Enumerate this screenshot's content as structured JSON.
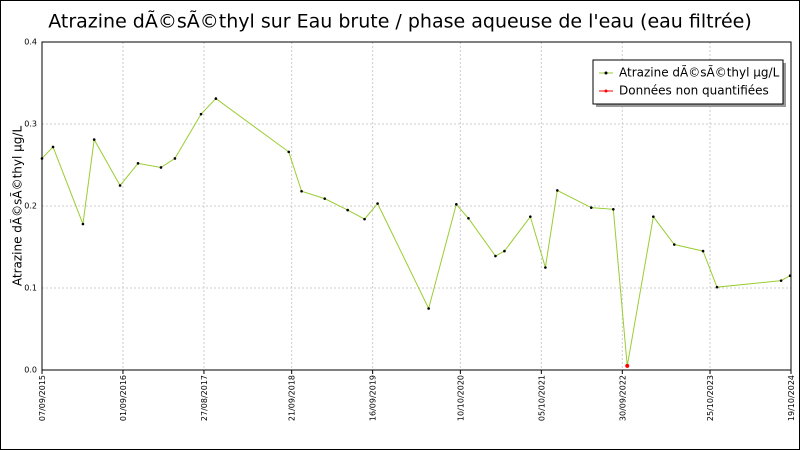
{
  "chart_data": {
    "type": "line",
    "title": "Atrazine dÃ©sÃ©thyl sur Eau brute / phase aqueuse de l'eau (eau filtrée)",
    "y_label": "Atrazine dÃ©sÃ©thyl µg/L",
    "xlim": [
      "07/09/2015",
      "19/10/2024"
    ],
    "xticks": [
      "07/09/2015",
      "01/09/2016",
      "27/08/2017",
      "21/09/2018",
      "16/09/2019",
      "10/10/2020",
      "05/10/2021",
      "30/09/2022",
      "25/10/2023",
      "19/10/2024"
    ],
    "ylim": [
      0,
      0.4
    ],
    "yticks": [
      {
        "value": 0,
        "label": "0.0"
      },
      0.1,
      0.2,
      0.3,
      0.4
    ],
    "grid": true,
    "legend": "upper right",
    "series": [
      {
        "name": "Atrazine dÃ©sÃ©thyl µg/L",
        "color": "#9acd32",
        "marker_color": "#000000",
        "x": [
          "07/09/2015",
          "26/10/2015",
          "07/03/2016",
          "26/04/2016",
          "19/08/2016",
          "07/11/2016",
          "17/02/2017",
          "20/04/2017",
          "14/08/2017",
          "19/10/2017",
          "08/09/2018",
          "04/11/2018",
          "15/02/2019",
          "28/05/2019",
          "11/08/2019",
          "08/10/2019",
          "22/05/2020",
          "22/09/2020",
          "15/11/2020",
          "15/03/2021",
          "24/04/2021",
          "17/08/2021",
          "23/10/2021",
          "15/12/2021",
          "15/05/2022",
          "21/08/2022",
          "22/10/2022",
          "15/02/2023",
          "19/05/2023",
          "24/09/2023",
          "25/11/2023",
          "05/09/2024",
          "15/10/2024"
        ],
        "values": [
          0.258,
          0.272,
          0.178,
          0.281,
          0.225,
          0.252,
          0.247,
          0.258,
          0.312,
          0.331,
          0.266,
          0.218,
          0.209,
          0.195,
          0.184,
          0.203,
          0.075,
          0.202,
          0.185,
          0.139,
          0.145,
          0.187,
          0.125,
          0.219,
          0.198,
          0.196,
          0.005,
          0.187,
          0.153,
          0.145,
          0.101,
          0.109,
          0.115
        ]
      },
      {
        "name": "Données non quantifiées",
        "color": "#ff0000",
        "x": [
          "22/10/2022"
        ],
        "values": [
          0.005
        ]
      }
    ]
  }
}
